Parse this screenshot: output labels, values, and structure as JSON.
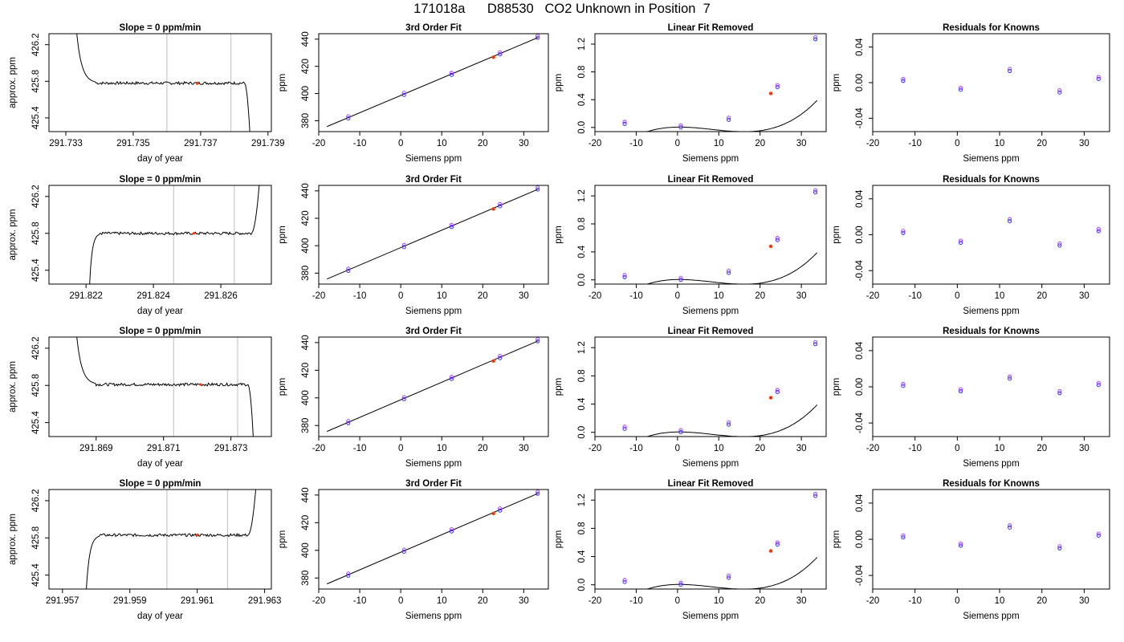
{
  "figure_title": "171018a      D88530   CO2 Unknown in Position  7",
  "colors": {
    "line": "#000000",
    "known": "#1f1fff",
    "known_alt": "#a030ff",
    "unknown": "#ff3300",
    "box": "#000000",
    "marker_line": "#c8c8c8"
  },
  "chart_data": [
    {
      "type": "line",
      "title": "Slope =  0  ppm/min",
      "xlabel": "day of year",
      "ylabel": "approx. ppm",
      "xticks": [
        "291.733",
        "291.735",
        "291.737",
        "291.739"
      ],
      "yticks": [
        "425.4",
        "425.8",
        "426.2"
      ],
      "xlim": [
        291.7325,
        291.7391
      ],
      "ylim": [
        425.25,
        426.32
      ],
      "marker_lines": [
        291.736,
        291.7379
      ],
      "trace": {
        "shape": "drop",
        "start": 291.7333,
        "rise": 291.7339,
        "end": 291.7383,
        "endfall": 291.7385,
        "level": 425.78,
        "low": 425.77
      },
      "unknown_point": [
        291.7369,
        425.775
      ]
    },
    {
      "type": "scatter",
      "title": "3rd Order Fit",
      "xlabel": "Siemens ppm",
      "ylabel": "ppm",
      "xticks": [
        "-20",
        "-10",
        "0",
        "10",
        "20",
        "30"
      ],
      "yticks": [
        "380",
        "400",
        "420",
        "440"
      ],
      "xlim": [
        -20,
        36
      ],
      "ylim": [
        372,
        444
      ],
      "fit_line": [
        [
          -18,
          375.7
        ],
        [
          33.5,
          441.2
        ]
      ],
      "knowns": [
        [
          -12.8,
          381.7
        ],
        [
          0.8,
          399.0
        ],
        [
          12.4,
          413.7
        ],
        [
          24.2,
          428.8
        ],
        [
          33.4,
          441.0
        ]
      ],
      "unknown": [
        22.6,
        426.7
      ]
    },
    {
      "type": "scatter",
      "title": "Linear Fit Removed",
      "xlabel": "Siemens ppm",
      "ylabel": "ppm",
      "xticks": [
        "-20",
        "-10",
        "0",
        "10",
        "20",
        "30"
      ],
      "yticks": [
        "0.0",
        "0.4",
        "0.8",
        "1.2"
      ],
      "xlim": [
        -20,
        36
      ],
      "ylim": [
        -0.06,
        1.35
      ],
      "curve": {
        "a": 3.5e-05,
        "b": -0.00087,
        "c": 0.0008,
        "d": 0.005
      },
      "knowns": [
        [
          -12.8,
          0.05
        ],
        [
          0.8,
          0.0
        ],
        [
          12.4,
          0.11
        ],
        [
          24.2,
          0.58
        ],
        [
          33.4,
          1.27
        ]
      ],
      "unknown": [
        22.6,
        0.49
      ]
    },
    {
      "type": "scatter",
      "title": "Residuals for Knowns",
      "xlabel": "Siemens ppm",
      "ylabel": "ppm",
      "xticks": [
        "-20",
        "-10",
        "0",
        "10",
        "20",
        "30"
      ],
      "yticks": [
        "-0.04",
        "0.00",
        "0.04"
      ],
      "xlim": [
        -20,
        36
      ],
      "ylim": [
        -0.055,
        0.055
      ],
      "knowns": [
        [
          -12.8,
          0.002
        ],
        [
          0.8,
          -0.008
        ],
        [
          12.4,
          0.013
        ],
        [
          24.2,
          -0.011
        ],
        [
          33.4,
          0.004
        ]
      ]
    },
    {
      "type": "line",
      "title": "Slope =  0  ppm/min",
      "xlabel": "day of year",
      "ylabel": "approx. ppm",
      "xticks": [
        "291.822",
        "291.824",
        "291.826"
      ],
      "yticks": [
        "425.4",
        "425.8",
        "426.2"
      ],
      "xlim": [
        291.8209,
        291.8275
      ],
      "ylim": [
        425.25,
        426.32
      ],
      "marker_lines": [
        291.8246,
        291.8264
      ],
      "trace": {
        "shape": "rise",
        "start": 291.8221,
        "rise": 291.8224,
        "end": 291.8269,
        "endfall": 291.8272,
        "level": 425.8,
        "low": 425.78
      },
      "unknown_point": [
        291.8252,
        425.8
      ]
    },
    {
      "type": "scatter",
      "title": "3rd Order Fit",
      "xlabel": "Siemens ppm",
      "ylabel": "ppm",
      "xticks": [
        "-20",
        "-10",
        "0",
        "10",
        "20",
        "30"
      ],
      "yticks": [
        "380",
        "400",
        "420",
        "440"
      ],
      "xlim": [
        -20,
        36
      ],
      "ylim": [
        372,
        444
      ],
      "fit_line": [
        [
          -18,
          375.7
        ],
        [
          33.5,
          441.2
        ]
      ],
      "knowns": [
        [
          -12.8,
          381.7
        ],
        [
          0.8,
          399.0
        ],
        [
          12.4,
          413.7
        ],
        [
          24.2,
          428.8
        ],
        [
          33.4,
          441.0
        ]
      ],
      "unknown": [
        22.6,
        426.8
      ]
    },
    {
      "type": "scatter",
      "title": "Linear Fit Removed",
      "xlabel": "Siemens ppm",
      "ylabel": "ppm",
      "xticks": [
        "-20",
        "-10",
        "0",
        "10",
        "20",
        "30"
      ],
      "yticks": [
        "0.0",
        "0.4",
        "0.8",
        "1.2"
      ],
      "xlim": [
        -20,
        36
      ],
      "ylim": [
        -0.06,
        1.35
      ],
      "curve": {
        "a": 3.5e-05,
        "b": -0.00087,
        "c": 0.0008,
        "d": 0.005
      },
      "knowns": [
        [
          -12.8,
          0.04
        ],
        [
          0.8,
          0.0
        ],
        [
          12.4,
          0.1
        ],
        [
          24.2,
          0.57
        ],
        [
          33.4,
          1.25
        ]
      ],
      "unknown": [
        22.6,
        0.48
      ]
    },
    {
      "type": "scatter",
      "title": "Residuals for Knowns",
      "xlabel": "Siemens ppm",
      "ylabel": "ppm",
      "xticks": [
        "-20",
        "-10",
        "0",
        "10",
        "20",
        "30"
      ],
      "yticks": [
        "-0.04",
        "0.00",
        "0.04"
      ],
      "xlim": [
        -20,
        36
      ],
      "ylim": [
        -0.055,
        0.055
      ],
      "knowns": [
        [
          -12.8,
          0.002
        ],
        [
          0.8,
          -0.009
        ],
        [
          12.4,
          0.015
        ],
        [
          24.2,
          -0.012
        ],
        [
          33.4,
          0.004
        ]
      ]
    },
    {
      "type": "line",
      "title": "Slope =  0  ppm/min",
      "xlabel": "day of year",
      "ylabel": "approx. ppm",
      "xticks": [
        "291.869",
        "291.871",
        "291.873"
      ],
      "yticks": [
        "425.4",
        "425.8",
        "426.2"
      ],
      "xlim": [
        291.8676,
        291.8742
      ],
      "ylim": [
        425.25,
        426.32
      ],
      "marker_lines": [
        291.8713,
        291.8732
      ],
      "trace": {
        "shape": "drop",
        "start": 291.8684,
        "rise": 291.869,
        "end": 291.8735,
        "endfall": 291.8737,
        "level": 425.81,
        "low": 425.8
      },
      "unknown_point": [
        291.8721,
        425.81
      ]
    },
    {
      "type": "scatter",
      "title": "3rd Order Fit",
      "xlabel": "Siemens ppm",
      "ylabel": "ppm",
      "xticks": [
        "-20",
        "-10",
        "0",
        "10",
        "20",
        "30"
      ],
      "yticks": [
        "380",
        "400",
        "420",
        "440"
      ],
      "xlim": [
        -20,
        36
      ],
      "ylim": [
        372,
        444
      ],
      "fit_line": [
        [
          -18,
          375.7
        ],
        [
          33.5,
          441.2
        ]
      ],
      "knowns": [
        [
          -12.8,
          381.7
        ],
        [
          0.8,
          399.0
        ],
        [
          12.4,
          413.7
        ],
        [
          24.2,
          428.8
        ],
        [
          33.4,
          441.0
        ]
      ],
      "unknown": [
        22.6,
        426.7
      ]
    },
    {
      "type": "scatter",
      "title": "Linear Fit Removed",
      "xlabel": "Siemens ppm",
      "ylabel": "ppm",
      "xticks": [
        "-20",
        "-10",
        "0",
        "10",
        "20",
        "30"
      ],
      "yticks": [
        "0.0",
        "0.4",
        "0.8",
        "1.2"
      ],
      "xlim": [
        -20,
        36
      ],
      "ylim": [
        -0.06,
        1.35
      ],
      "curve": {
        "a": 3.5e-05,
        "b": -0.00087,
        "c": 0.0008,
        "d": 0.005
      },
      "knowns": [
        [
          -12.8,
          0.05
        ],
        [
          0.8,
          0.0
        ],
        [
          12.4,
          0.11
        ],
        [
          24.2,
          0.57
        ],
        [
          33.4,
          1.25
        ]
      ],
      "unknown": [
        22.6,
        0.49
      ]
    },
    {
      "type": "scatter",
      "title": "Residuals for Knowns",
      "xlabel": "Siemens ppm",
      "ylabel": "ppm",
      "xticks": [
        "-20",
        "-10",
        "0",
        "10",
        "20",
        "30"
      ],
      "yticks": [
        "-0.04",
        "0.00",
        "0.04"
      ],
      "xlim": [
        -20,
        36
      ],
      "ylim": [
        -0.055,
        0.055
      ],
      "knowns": [
        [
          -12.8,
          0.001
        ],
        [
          0.8,
          -0.005
        ],
        [
          12.4,
          0.009
        ],
        [
          24.2,
          -0.007
        ],
        [
          33.4,
          0.002
        ]
      ]
    },
    {
      "type": "line",
      "title": "Slope =  0  ppm/min",
      "xlabel": "day of year",
      "ylabel": "approx. ppm",
      "xticks": [
        "291.957",
        "291.959",
        "291.961",
        "291.963"
      ],
      "yticks": [
        "425.4",
        "425.8",
        "426.2"
      ],
      "xlim": [
        291.9566,
        291.9632
      ],
      "ylim": [
        425.25,
        426.32
      ],
      "marker_lines": [
        291.9601,
        291.9619
      ],
      "trace": {
        "shape": "rise",
        "start": 291.9577,
        "rise": 291.9581,
        "end": 291.9625,
        "endfall": 291.9628,
        "level": 425.83,
        "low": 425.81
      },
      "unknown_point": [
        291.961,
        425.83
      ]
    },
    {
      "type": "scatter",
      "title": "3rd Order Fit",
      "xlabel": "Siemens ppm",
      "ylabel": "ppm",
      "xticks": [
        "-20",
        "-10",
        "0",
        "10",
        "20",
        "30"
      ],
      "yticks": [
        "380",
        "400",
        "420",
        "440"
      ],
      "xlim": [
        -20,
        36
      ],
      "ylim": [
        372,
        444
      ],
      "fit_line": [
        [
          -18,
          375.7
        ],
        [
          33.5,
          441.2
        ]
      ],
      "knowns": [
        [
          -12.8,
          381.7
        ],
        [
          0.8,
          399.0
        ],
        [
          12.4,
          413.7
        ],
        [
          24.2,
          428.8
        ],
        [
          33.4,
          441.0
        ]
      ],
      "unknown": [
        22.6,
        426.7
      ]
    },
    {
      "type": "scatter",
      "title": "Linear Fit Removed",
      "xlabel": "Siemens ppm",
      "ylabel": "ppm",
      "xticks": [
        "-20",
        "-10",
        "0",
        "10",
        "20",
        "30"
      ],
      "yticks": [
        "0.0",
        "0.4",
        "0.8",
        "1.2"
      ],
      "xlim": [
        -20,
        36
      ],
      "ylim": [
        -0.06,
        1.35
      ],
      "curve": {
        "a": 3.5e-05,
        "b": -0.00087,
        "c": 0.0008,
        "d": 0.005
      },
      "knowns": [
        [
          -12.8,
          0.04
        ],
        [
          0.8,
          0.0
        ],
        [
          12.4,
          0.1
        ],
        [
          24.2,
          0.57
        ],
        [
          33.4,
          1.26
        ]
      ],
      "unknown": [
        22.6,
        0.48
      ]
    },
    {
      "type": "scatter",
      "title": "Residuals for Knowns",
      "xlabel": "Siemens ppm",
      "ylabel": "ppm",
      "xticks": [
        "-20",
        "-10",
        "0",
        "10",
        "20",
        "30"
      ],
      "yticks": [
        "-0.04",
        "0.00",
        "0.04"
      ],
      "xlim": [
        -20,
        36
      ],
      "ylim": [
        -0.055,
        0.055
      ],
      "knowns": [
        [
          -12.8,
          0.002
        ],
        [
          0.8,
          -0.007
        ],
        [
          12.4,
          0.013
        ],
        [
          24.2,
          -0.01
        ],
        [
          33.4,
          0.004
        ]
      ]
    }
  ]
}
